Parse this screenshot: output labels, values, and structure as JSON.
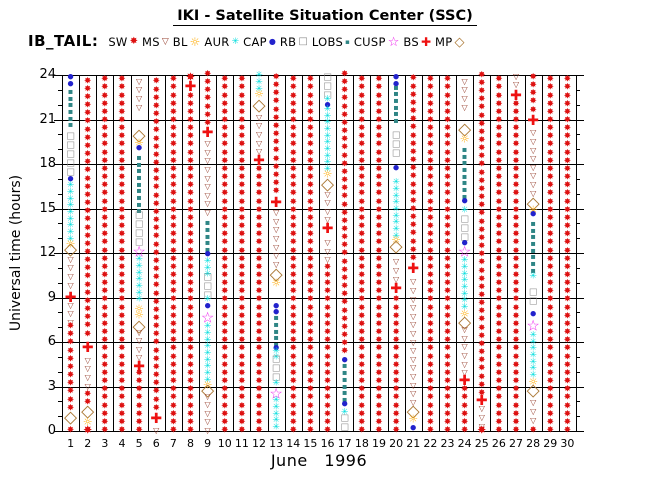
{
  "title": "IKI - Satellite Situation Center (SSC)",
  "dataset_label": "IB_TAIL:",
  "legend": [
    {
      "label": "SW",
      "region": "SW"
    },
    {
      "label": "MS",
      "region": "MS"
    },
    {
      "label": "BL",
      "region": "BL"
    },
    {
      "label": "AUR",
      "region": "AUR"
    },
    {
      "label": "CAP",
      "region": "CAP"
    },
    {
      "label": "RB",
      "region": "RB"
    },
    {
      "label": "LOBS",
      "region": "LOBS"
    },
    {
      "label": "CUSP",
      "region": "CUSP"
    },
    {
      "label": "BS",
      "region": "BS"
    },
    {
      "label": "MP",
      "region": "MP"
    }
  ],
  "axes": {
    "y_label": "Universal time (hours)",
    "x_label": "June   1996",
    "y_ticks": [
      0,
      3,
      6,
      9,
      12,
      15,
      18,
      21,
      24
    ],
    "y_range": [
      0,
      24
    ],
    "x_ticks": [
      1,
      2,
      3,
      4,
      5,
      6,
      7,
      8,
      9,
      10,
      11,
      12,
      13,
      14,
      15,
      16,
      17,
      18,
      19,
      20,
      21,
      22,
      23,
      24,
      25,
      26,
      27,
      28,
      29,
      30
    ],
    "grid": true
  },
  "chart_data": {
    "type": "scatter",
    "subtype": "satellite-region-timeline",
    "x_unit": "day of June 1996",
    "y_unit": "UT hours",
    "regions": {
      "SW": {
        "glyph": "✸",
        "color": "#dd1111",
        "size": 9,
        "step": 0.55,
        "point": 11,
        "lsize": 10
      },
      "MS": {
        "glyph": "▽",
        "color": "#994433",
        "size": 8,
        "step": 0.58,
        "point": 9,
        "lsize": 9
      },
      "BL": {
        "glyph": "☼",
        "color": "#ffaa00",
        "size": 11,
        "step": 0.42,
        "point": 11,
        "lsize": 12
      },
      "AUR": {
        "glyph": "✳",
        "color": "#00dddd",
        "size": 9,
        "step": 0.45,
        "point": 9,
        "lsize": 9
      },
      "CAP": {
        "glyph": "●",
        "color": "#2222cc",
        "size": 7,
        "step": 0.45,
        "point": 7,
        "lsize": 8
      },
      "RB": {
        "glyph": "□",
        "color": "#888888",
        "size": 9,
        "step": 0.6,
        "point": 9,
        "lsize": 10
      },
      "LOBS": {
        "glyph": "▪",
        "color": "#2e8585",
        "size": 8,
        "step": 0.45,
        "point": 8,
        "lsize": 7
      },
      "CUSP": {
        "glyph": "☆",
        "color": "#ee22ee",
        "size": 15,
        "step": 0.6,
        "point": 15,
        "lsize": 13
      },
      "BS": {
        "glyph": "✚",
        "color": "#ee1111",
        "size": 14,
        "step": 0.6,
        "point": 14,
        "lsize": 12
      },
      "MP": {
        "glyph": "◇",
        "color": "#aa7733",
        "size": 17,
        "step": 0.6,
        "point": 17,
        "lsize": 13
      }
    },
    "days": [
      {
        "day": 1,
        "segments": [
          [
            "CAP",
            23.4,
            24
          ],
          [
            "LOBS",
            20.6,
            23.2
          ],
          [
            "RB",
            17.4,
            20.3
          ],
          [
            "CAP",
            17.0,
            17.0
          ],
          [
            "AUR",
            12.9,
            16.8
          ],
          [
            "BL",
            12.6,
            12.6
          ],
          [
            "MP",
            12.2,
            12.2
          ],
          [
            "MS",
            9.8,
            11.9
          ],
          [
            "BS",
            9.0,
            9.0
          ],
          [
            "MS",
            7.3,
            8.6
          ],
          [
            "SW",
            1.5,
            7.0
          ],
          [
            "MP",
            0.9,
            0.9
          ],
          [
            "SW",
            0,
            0.4
          ]
        ]
      },
      {
        "day": 2,
        "segments": [
          [
            "SW",
            6.5,
            24
          ],
          [
            "BS",
            5.6,
            5.6
          ],
          [
            "MS",
            3.0,
            5.0
          ],
          [
            "SW",
            1.9,
            2.6
          ],
          [
            "MP",
            1.3,
            1.3
          ],
          [
            "BL",
            0.6,
            0.6
          ],
          [
            "SW",
            0,
            0.2
          ]
        ]
      },
      {
        "day": 3,
        "segments": [
          [
            "SW",
            0,
            24
          ]
        ]
      },
      {
        "day": 4,
        "segments": [
          [
            "SW",
            0,
            24
          ]
        ]
      },
      {
        "day": 5,
        "segments": [
          [
            "MS",
            21.8,
            24
          ],
          [
            "MP",
            19.9,
            19.9
          ],
          [
            "BL",
            19.4,
            19.4
          ],
          [
            "CAP",
            19.1,
            19.1
          ],
          [
            "LOBS",
            14.8,
            18.8
          ],
          [
            "RB",
            12.7,
            14.6
          ],
          [
            "CUSP",
            12.1,
            12.1
          ],
          [
            "AUR",
            8.8,
            11.7
          ],
          [
            "BL",
            7.8,
            8.5
          ],
          [
            "MP",
            7.0,
            7.0
          ],
          [
            "MS",
            4.9,
            6.7
          ],
          [
            "BS",
            4.3,
            4.3
          ],
          [
            "SW",
            0,
            3.9
          ]
        ]
      },
      {
        "day": 6,
        "segments": [
          [
            "SW",
            1.5,
            24
          ],
          [
            "BS",
            0.8,
            0.8
          ],
          [
            "MS",
            0,
            0.5
          ]
        ]
      },
      {
        "day": 7,
        "segments": [
          [
            "SW",
            0,
            24
          ]
        ]
      },
      {
        "day": 8,
        "segments": [
          [
            "SW",
            23.7,
            24
          ],
          [
            "BS",
            23.2,
            23.2
          ],
          [
            "SW",
            0,
            22.8
          ]
        ]
      },
      {
        "day": 9,
        "segments": [
          [
            "SW",
            20.7,
            24
          ],
          [
            "BS",
            20.1,
            20.1
          ],
          [
            "MS",
            14.7,
            19.7
          ],
          [
            "LOBS",
            12.2,
            14.4
          ],
          [
            "CAP",
            11.9,
            11.9
          ],
          [
            "AUR",
            10.5,
            11.6
          ],
          [
            "RB",
            9.1,
            10.3
          ],
          [
            "AUR",
            8.8,
            8.8
          ],
          [
            "CAP",
            8.4,
            8.4
          ],
          [
            "CUSP",
            7.6,
            7.6
          ],
          [
            "AUR",
            3.4,
            7.1
          ],
          [
            "BL",
            3.1,
            3.1
          ],
          [
            "MP",
            2.7,
            2.7
          ],
          [
            "MS",
            0,
            2.4
          ]
        ]
      },
      {
        "day": 10,
        "segments": [
          [
            "SW",
            0,
            24
          ]
        ]
      },
      {
        "day": 11,
        "segments": [
          [
            "SW",
            0,
            24
          ]
        ]
      },
      {
        "day": 12,
        "segments": [
          [
            "AUR",
            23.0,
            24
          ],
          [
            "BL",
            22.7,
            22.7
          ],
          [
            "MP",
            21.9,
            21.9
          ],
          [
            "MS",
            18.8,
            21.5
          ],
          [
            "BS",
            18.2,
            18.2
          ],
          [
            "SW",
            0,
            17.7
          ]
        ]
      },
      {
        "day": 13,
        "segments": [
          [
            "SW",
            16.1,
            24
          ],
          [
            "BS",
            15.4,
            15.4
          ],
          [
            "MS",
            11.2,
            14.9
          ],
          [
            "MP",
            10.5,
            10.5
          ],
          [
            "BL",
            10.0,
            10.0
          ],
          [
            "CAP",
            8.0,
            8.7
          ],
          [
            "LOBS",
            5.8,
            7.6
          ],
          [
            "CAP",
            5.6,
            5.6
          ],
          [
            "AUR",
            4.9,
            5.4
          ],
          [
            "RB",
            3.6,
            4.8
          ],
          [
            "AUR",
            3.1,
            3.3
          ],
          [
            "CUSP",
            2.5,
            2.5
          ],
          [
            "AUR",
            0.2,
            2.0
          ]
        ]
      },
      {
        "day": 14,
        "segments": [
          [
            "SW",
            0,
            24
          ]
        ]
      },
      {
        "day": 15,
        "segments": [
          [
            "SW",
            0,
            24
          ]
        ]
      },
      {
        "day": 16,
        "segments": [
          [
            "RB",
            22.6,
            24
          ],
          [
            "AUR",
            22.3,
            22.3
          ],
          [
            "CAP",
            22.0,
            22.0
          ],
          [
            "AUR",
            17.6,
            21.8
          ],
          [
            "BL",
            17.3,
            17.3
          ],
          [
            "MP",
            16.6,
            16.6
          ],
          [
            "MS",
            14.2,
            16.0
          ],
          [
            "BS",
            13.6,
            13.6
          ],
          [
            "MS",
            11.5,
            13.0
          ],
          [
            "SW",
            0,
            11.1
          ]
        ]
      },
      {
        "day": 17,
        "segments": [
          [
            "SW",
            5.3,
            24
          ],
          [
            "CAP",
            4.7,
            4.9
          ],
          [
            "LOBS",
            2.1,
            4.5
          ],
          [
            "CAP",
            1.8,
            1.8
          ],
          [
            "AUR",
            1.2,
            1.2
          ],
          [
            "RB",
            0.2,
            0.8
          ]
        ]
      },
      {
        "day": 18,
        "segments": [
          [
            "SW",
            0,
            24
          ]
        ]
      },
      {
        "day": 19,
        "segments": [
          [
            "SW",
            0,
            24
          ]
        ]
      },
      {
        "day": 20,
        "segments": [
          [
            "CAP",
            23.4,
            24
          ],
          [
            "LOBS",
            20.9,
            23.2
          ],
          [
            "RB",
            18.7,
            19.9
          ],
          [
            "CAP",
            17.6,
            17.9
          ],
          [
            "AUR",
            13.1,
            17.0
          ],
          [
            "BL",
            12.9,
            12.9
          ],
          [
            "MP",
            12.4,
            12.4
          ],
          [
            "MS",
            10.2,
            11.9
          ],
          [
            "BS",
            9.6,
            9.6
          ],
          [
            "SW",
            0,
            9.1
          ]
        ]
      },
      {
        "day": 21,
        "segments": [
          [
            "SW",
            11.6,
            24
          ],
          [
            "BS",
            10.9,
            10.9
          ],
          [
            "MS",
            1.9,
            10.4
          ],
          [
            "MP",
            1.3,
            1.3
          ],
          [
            "BL",
            0.8,
            0.8
          ],
          [
            "CAP",
            0.2,
            0.2
          ]
        ]
      },
      {
        "day": 22,
        "segments": [
          [
            "SW",
            0,
            24
          ]
        ]
      },
      {
        "day": 23,
        "segments": [
          [
            "SW",
            0,
            24
          ]
        ]
      },
      {
        "day": 24,
        "segments": [
          [
            "MS",
            21.8,
            24
          ],
          [
            "MP",
            20.3,
            20.3
          ],
          [
            "BL",
            19.7,
            19.7
          ],
          [
            "LOBS",
            15.8,
            19.3
          ],
          [
            "CAP",
            15.5,
            15.5
          ],
          [
            "AUR",
            14.8,
            15.2
          ],
          [
            "RB",
            13.0,
            14.6
          ],
          [
            "CAP",
            12.7,
            12.7
          ],
          [
            "CUSP",
            12.1,
            12.1
          ],
          [
            "AUR",
            8.3,
            11.7
          ],
          [
            "BL",
            7.9,
            7.9
          ],
          [
            "MP",
            7.3,
            7.3
          ],
          [
            "MS",
            3.9,
            6.9
          ],
          [
            "BS",
            3.4,
            3.4
          ],
          [
            "SW",
            0,
            3.0
          ]
        ]
      },
      {
        "day": 25,
        "segments": [
          [
            "SW",
            2.5,
            24
          ],
          [
            "BS",
            2.0,
            2.0
          ],
          [
            "MS",
            0.3,
            1.7
          ],
          [
            "SW",
            0,
            0.1
          ]
        ]
      },
      {
        "day": 26,
        "segments": [
          [
            "SW",
            0,
            24
          ]
        ]
      },
      {
        "day": 27,
        "segments": [
          [
            "MS",
            23.3,
            24
          ],
          [
            "BS",
            22.6,
            22.6
          ],
          [
            "SW",
            0,
            22.1
          ]
        ]
      },
      {
        "day": 28,
        "segments": [
          [
            "SW",
            21.6,
            24
          ],
          [
            "BS",
            20.9,
            20.9
          ],
          [
            "MS",
            16.0,
            20.4
          ],
          [
            "MP",
            15.3,
            15.3
          ],
          [
            "BL",
            14.9,
            14.9
          ],
          [
            "CAP",
            14.6,
            14.6
          ],
          [
            "LOBS",
            10.8,
            14.0
          ],
          [
            "AUR",
            10.4,
            10.4
          ],
          [
            "RB",
            8.7,
            9.7
          ],
          [
            "CAP",
            7.9,
            7.9
          ],
          [
            "CUSP",
            7.1,
            7.1
          ],
          [
            "AUR",
            3.7,
            6.6
          ],
          [
            "BL",
            3.3,
            3.3
          ],
          [
            "MP",
            2.7,
            2.7
          ],
          [
            "MS",
            0.7,
            2.4
          ],
          [
            "SW",
            0,
            0.4
          ]
        ]
      },
      {
        "day": 29,
        "segments": [
          [
            "SW",
            0,
            24
          ]
        ]
      },
      {
        "day": 30,
        "segments": [
          [
            "SW",
            0,
            24
          ]
        ]
      }
    ]
  }
}
